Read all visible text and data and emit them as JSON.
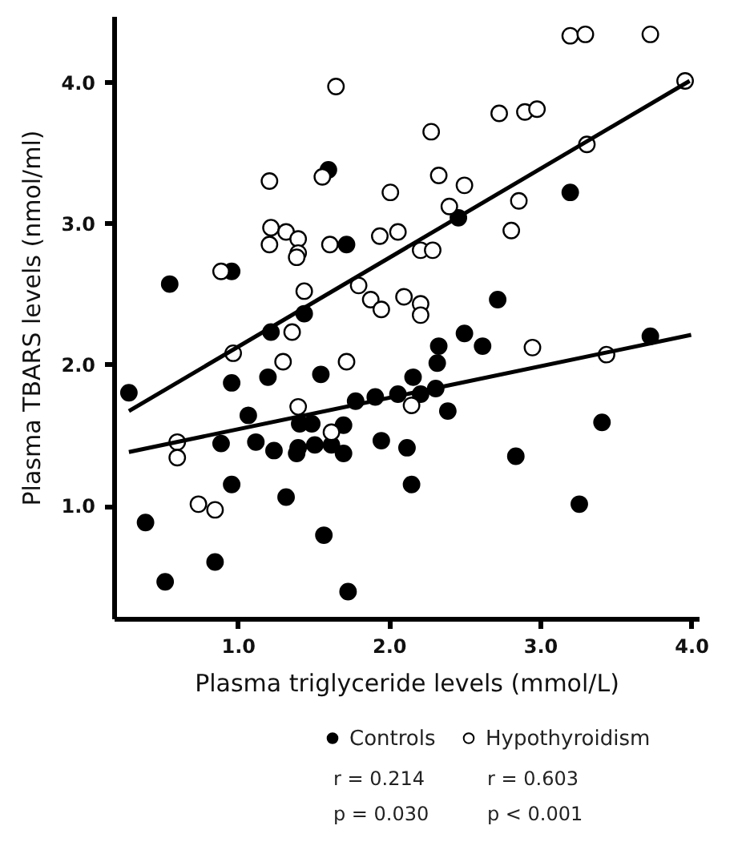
{
  "chart_data": {
    "type": "scatter",
    "xlabel": "Plasma triglyceride levels (mmol/L)",
    "ylabel": "Plasma TBARS levels (nmol/ml)",
    "xlim": [
      0.18,
      4.05
    ],
    "ylim": [
      0.2,
      4.47
    ],
    "xticks": [
      {
        "value": 1,
        "label": "1.0"
      },
      {
        "value": 2,
        "label": "2.0"
      },
      {
        "value": 3,
        "label": "3.0"
      },
      {
        "value": 4,
        "label": "4.0"
      }
    ],
    "yticks": [
      {
        "value": 1,
        "label": "1.0"
      },
      {
        "value": 2,
        "label": "2.0"
      },
      {
        "value": 3,
        "label": "3.0"
      },
      {
        "value": 4,
        "label": "4.0"
      }
    ],
    "grid": false,
    "legend": "bottom",
    "marker": "circle",
    "annotations": [
      "r = 0.214",
      "r = 0.603",
      "p = 0.030",
      "p < 0.001"
    ],
    "series": [
      {
        "name": "Controls",
        "type": "scatter",
        "color": "#000000",
        "x": [
          1.6,
          1.72,
          0.55,
          0.96,
          1.44,
          3.2,
          2.46,
          2.72,
          1.22,
          0.96,
          1.2,
          1.55,
          0.28,
          1.07,
          1.41,
          1.49,
          1.7,
          1.78,
          1.91,
          2.06,
          2.16,
          0.89,
          1.12,
          1.24,
          1.4,
          1.39,
          1.51,
          1.62,
          1.7,
          1.95,
          2.12,
          2.15,
          0.96,
          1.32,
          0.39,
          1.57,
          0.85,
          0.52,
          1.73,
          2.5,
          2.33,
          2.62,
          2.32,
          3.73,
          2.21,
          2.31,
          2.39,
          3.41,
          2.84,
          3.26
        ],
        "values": [
          3.38,
          2.85,
          2.57,
          2.66,
          2.36,
          3.22,
          3.04,
          2.46,
          2.23,
          1.87,
          1.91,
          1.93,
          1.8,
          1.64,
          1.58,
          1.58,
          1.57,
          1.74,
          1.77,
          1.79,
          1.91,
          1.44,
          1.45,
          1.39,
          1.41,
          1.37,
          1.43,
          1.43,
          1.37,
          1.46,
          1.41,
          1.15,
          1.15,
          1.06,
          0.88,
          0.79,
          0.6,
          0.46,
          0.39,
          2.22,
          2.13,
          2.13,
          2.01,
          2.2,
          1.79,
          1.83,
          1.67,
          1.59,
          1.35,
          1.01
        ]
      },
      {
        "name": "Hypothyroidism",
        "type": "scatter",
        "color": "#ffffff",
        "x": [
          1.65,
          1.56,
          1.21,
          2.01,
          1.22,
          1.32,
          1.4,
          1.21,
          1.61,
          1.94,
          2.06,
          1.4,
          1.39,
          0.89,
          1.44,
          1.8,
          1.88,
          1.95,
          2.1,
          3.2,
          3.3,
          3.73,
          3.96,
          2.73,
          2.9,
          2.98,
          2.28,
          3.31,
          2.33,
          2.5,
          2.4,
          2.86,
          2.81,
          2.21,
          2.29,
          2.21,
          2.21,
          1.36,
          0.97,
          1.3,
          1.72,
          1.4,
          1.62,
          2.15,
          0.6,
          0.6,
          0.74,
          0.85,
          2.95,
          3.44
        ],
        "values": [
          3.97,
          3.33,
          3.3,
          3.22,
          2.97,
          2.94,
          2.89,
          2.85,
          2.85,
          2.91,
          2.94,
          2.79,
          2.76,
          2.66,
          2.52,
          2.56,
          2.46,
          2.39,
          2.48,
          4.33,
          4.34,
          4.34,
          4.01,
          3.78,
          3.79,
          3.81,
          3.65,
          3.56,
          3.34,
          3.27,
          3.12,
          3.16,
          2.95,
          2.81,
          2.81,
          2.43,
          2.35,
          2.23,
          2.08,
          2.02,
          2.02,
          1.7,
          1.52,
          1.71,
          1.45,
          1.34,
          1.01,
          0.97,
          2.12,
          2.07
        ]
      },
      {
        "type": "line",
        "marker": "none",
        "color": "#000000",
        "x": [
          0.28,
          4.0
        ],
        "values": [
          1.38,
          2.21
        ]
      },
      {
        "type": "line",
        "marker": "none",
        "color": "#000000",
        "x": [
          0.28,
          3.99
        ],
        "values": [
          1.67,
          4.01
        ]
      }
    ]
  }
}
